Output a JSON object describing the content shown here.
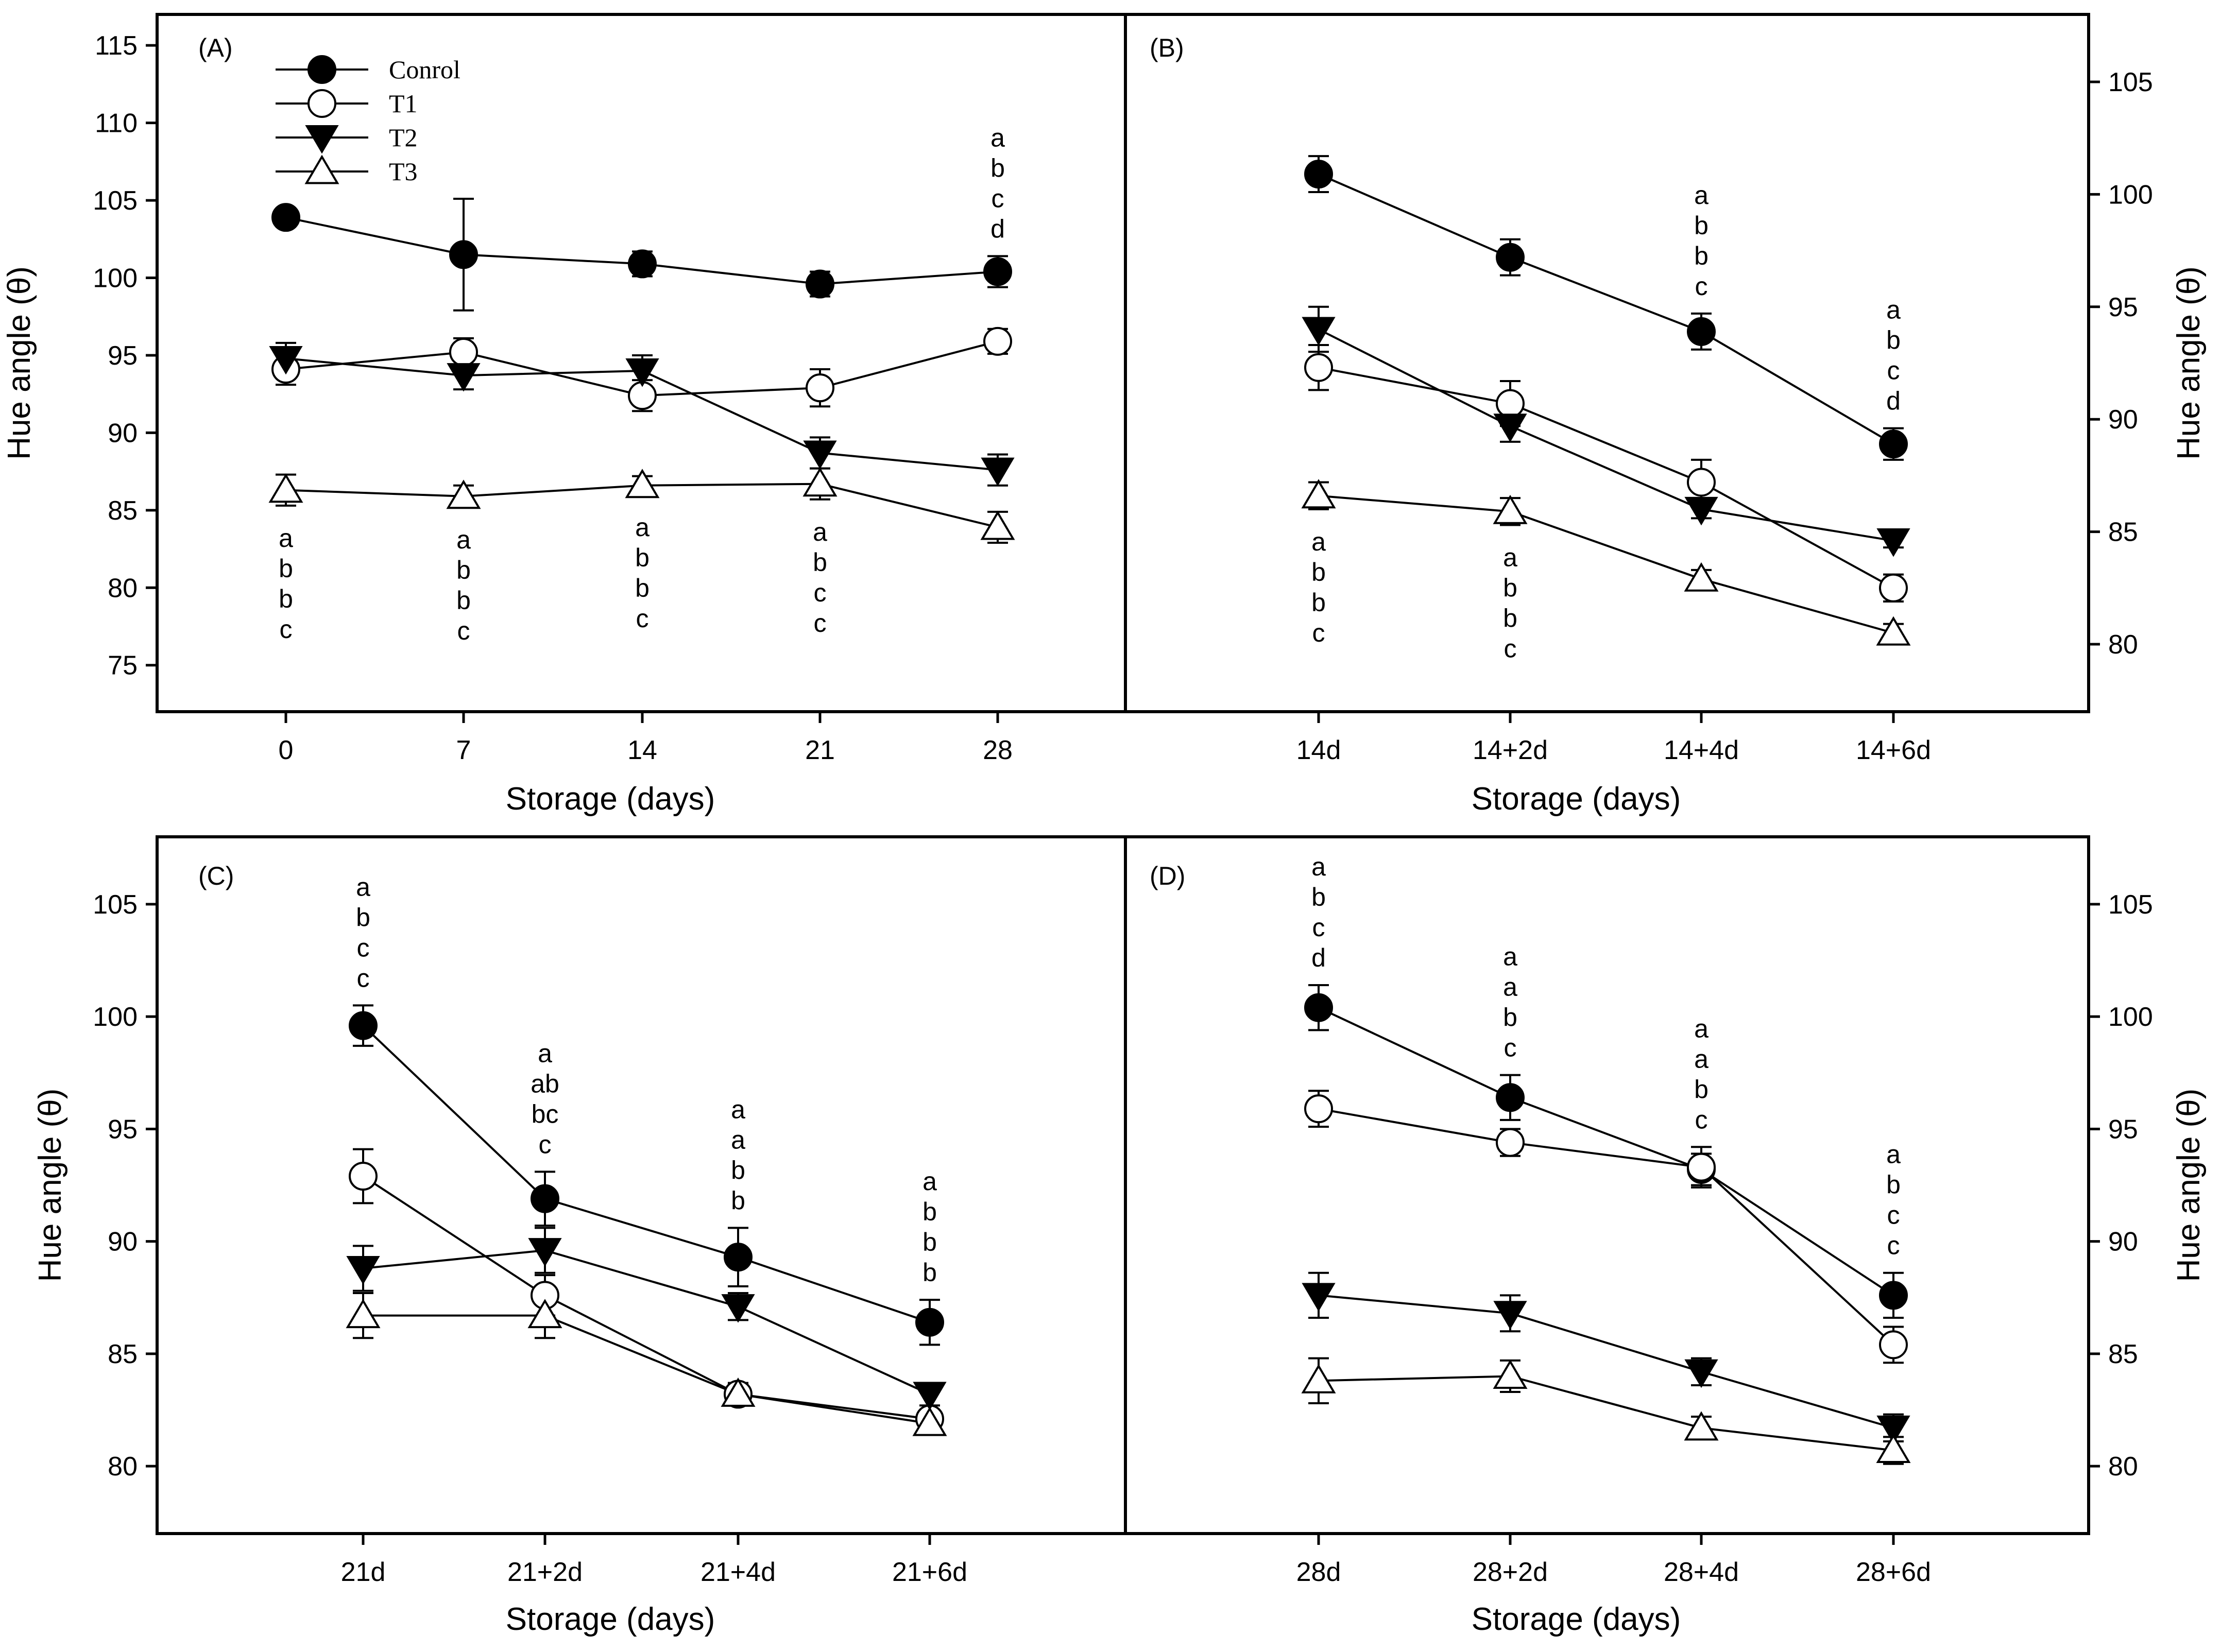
{
  "chart_data": [
    {
      "panel": "(A)",
      "type": "line",
      "categories": [
        "0",
        "7",
        "14",
        "21",
        "28"
      ],
      "xlabel": "Storage (days)",
      "ylabel": "Hue angle (θ)",
      "ylim": [
        72,
        117
      ],
      "yticks": [
        75,
        80,
        85,
        90,
        95,
        100,
        105,
        110,
        115
      ],
      "yaxis_side": "left",
      "legend": [
        "Conrol",
        "T1",
        "T2",
        "T3"
      ],
      "series": [
        {
          "name": "Conrol",
          "marker": "circle-filled",
          "values": [
            103.9,
            101.5,
            100.9,
            99.6,
            100.4
          ],
          "errors": [
            0.6,
            3.6,
            0.8,
            0.8,
            1.0
          ]
        },
        {
          "name": "T1",
          "marker": "circle-open",
          "values": [
            94.1,
            95.2,
            92.4,
            92.9,
            95.9
          ],
          "errors": [
            1.0,
            0.9,
            1.0,
            1.2,
            0.8
          ]
        },
        {
          "name": "T2",
          "marker": "triangle-down-filled",
          "values": [
            94.8,
            93.7,
            94.0,
            88.7,
            87.6
          ],
          "errors": [
            1.0,
            0.9,
            1.0,
            1.0,
            1.0
          ]
        },
        {
          "name": "T3",
          "marker": "triangle-up-open",
          "values": [
            86.3,
            85.9,
            86.6,
            86.7,
            83.9
          ],
          "errors": [
            1.0,
            0.7,
            0.6,
            1.0,
            1.0
          ]
        }
      ],
      "annotations": [
        {
          "category": "0",
          "position": "below",
          "text": [
            "a",
            "b",
            "b",
            "c"
          ]
        },
        {
          "category": "7",
          "position": "below",
          "text": [
            "a",
            "b",
            "b",
            "c"
          ]
        },
        {
          "category": "14",
          "position": "below",
          "text": [
            "a",
            "b",
            "b",
            "c"
          ]
        },
        {
          "category": "21",
          "position": "below",
          "text": [
            "a",
            "b",
            "c",
            "c"
          ]
        },
        {
          "category": "28",
          "position": "above",
          "text": [
            "a",
            "b",
            "c",
            "d"
          ]
        }
      ]
    },
    {
      "panel": "(B)",
      "type": "line",
      "categories": [
        "14d",
        "14+2d",
        "14+4d",
        "14+6d"
      ],
      "xlabel": "Storage (days)",
      "ylabel": "Hue angle (θ)",
      "ylim": [
        77,
        108
      ],
      "yticks": [
        80,
        85,
        90,
        95,
        100,
        105
      ],
      "yaxis_side": "right",
      "series": [
        {
          "name": "Conrol",
          "marker": "circle-filled",
          "values": [
            100.9,
            97.2,
            93.9,
            88.9
          ],
          "errors": [
            0.8,
            0.8,
            0.8,
            0.7
          ]
        },
        {
          "name": "T1",
          "marker": "circle-open",
          "values": [
            92.3,
            90.7,
            87.2,
            82.5
          ],
          "errors": [
            1.0,
            1.0,
            1.0,
            0.6
          ]
        },
        {
          "name": "T2",
          "marker": "triangle-down-filled",
          "values": [
            94.0,
            89.7,
            86.0,
            84.6
          ],
          "errors": [
            1.0,
            0.7,
            0.4,
            0.3
          ]
        },
        {
          "name": "T3",
          "marker": "triangle-up-open",
          "values": [
            86.6,
            85.9,
            82.9,
            80.5
          ],
          "errors": [
            0.6,
            0.6,
            0.4,
            0.4
          ]
        }
      ],
      "annotations": [
        {
          "category": "14d",
          "position": "below",
          "text": [
            "a",
            "b",
            "b",
            "c"
          ]
        },
        {
          "category": "14+2d",
          "position": "below",
          "text": [
            "a",
            "b",
            "b",
            "c"
          ]
        },
        {
          "category": "14+4d",
          "position": "above",
          "text": [
            "a",
            "b",
            "b",
            "c"
          ]
        },
        {
          "category": "14+6d",
          "position": "above",
          "text": [
            "a",
            "b",
            "c",
            "d"
          ]
        }
      ]
    },
    {
      "panel": "(C)",
      "type": "line",
      "categories": [
        "21d",
        "21+2d",
        "21+4d",
        "21+6d"
      ],
      "xlabel": "Storage (days)",
      "ylabel": "Hue angle (θ)",
      "ylim": [
        77,
        108
      ],
      "yticks": [
        80,
        85,
        90,
        95,
        100,
        105
      ],
      "yaxis_side": "left",
      "series": [
        {
          "name": "Conrol",
          "marker": "circle-filled",
          "values": [
            99.6,
            91.9,
            89.3,
            86.4
          ],
          "errors": [
            0.9,
            1.2,
            1.3,
            1.0
          ]
        },
        {
          "name": "T1",
          "marker": "circle-open",
          "values": [
            92.9,
            87.6,
            83.2,
            82.1
          ],
          "errors": [
            1.2,
            0.9,
            0.5,
            0.4
          ]
        },
        {
          "name": "T2",
          "marker": "triangle-down-filled",
          "values": [
            88.8,
            89.6,
            87.1,
            83.2
          ],
          "errors": [
            1.0,
            1.0,
            0.6,
            0.5
          ]
        },
        {
          "name": "T3",
          "marker": "triangle-up-open",
          "values": [
            86.7,
            86.7,
            83.2,
            81.9
          ],
          "errors": [
            1.0,
            1.0,
            0.5,
            0.4
          ]
        }
      ],
      "annotations": [
        {
          "category": "21d",
          "position": "above",
          "text": [
            "a",
            "b",
            "c",
            "c"
          ]
        },
        {
          "category": "21+2d",
          "position": "above",
          "text": [
            "a",
            "ab",
            "bc",
            "c"
          ]
        },
        {
          "category": "21+4d",
          "position": "above",
          "text": [
            "a",
            "a",
            "b",
            "b"
          ]
        },
        {
          "category": "21+6d",
          "position": "above",
          "text": [
            "a",
            "b",
            "b",
            "b"
          ]
        }
      ]
    },
    {
      "panel": "(D)",
      "type": "line",
      "categories": [
        "28d",
        "28+2d",
        "28+4d",
        "28+6d"
      ],
      "xlabel": "Storage (days)",
      "ylabel": "Hue angle (θ)",
      "ylim": [
        77,
        108
      ],
      "yticks": [
        80,
        85,
        90,
        95,
        100,
        105
      ],
      "yaxis_side": "right",
      "series": [
        {
          "name": "Conrol",
          "marker": "circle-filled",
          "values": [
            100.4,
            96.4,
            93.2,
            87.6
          ],
          "errors": [
            1.0,
            1.0,
            0.7,
            1.0
          ]
        },
        {
          "name": "T1",
          "marker": "circle-open",
          "values": [
            95.9,
            94.4,
            93.3,
            85.4
          ],
          "errors": [
            0.8,
            0.6,
            0.9,
            0.8
          ]
        },
        {
          "name": "T2",
          "marker": "triangle-down-filled",
          "values": [
            87.6,
            86.8,
            84.2,
            81.7
          ],
          "errors": [
            1.0,
            0.8,
            0.6,
            0.6
          ]
        },
        {
          "name": "T3",
          "marker": "triangle-up-open",
          "values": [
            83.8,
            84.0,
            81.7,
            80.7
          ],
          "errors": [
            1.0,
            0.7,
            0.5,
            0.6
          ]
        }
      ],
      "annotations": [
        {
          "category": "28d",
          "position": "above",
          "text": [
            "a",
            "b",
            "c",
            "d"
          ]
        },
        {
          "category": "28+2d",
          "position": "above",
          "text": [
            "a",
            "a",
            "b",
            "c"
          ]
        },
        {
          "category": "28+4d",
          "position": "above",
          "text": [
            "a",
            "a",
            "b",
            "c"
          ]
        },
        {
          "category": "28+6d",
          "position": "above",
          "text": [
            "a",
            "b",
            "c",
            "c"
          ]
        }
      ]
    }
  ]
}
